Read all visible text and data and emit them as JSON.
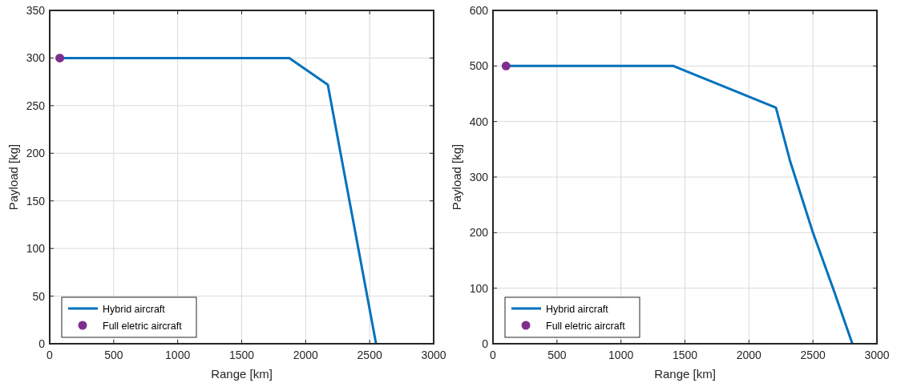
{
  "chart_data": [
    {
      "type": "line",
      "xlabel": "Range [km]",
      "ylabel": "Payload [kg]",
      "xlim": [
        0,
        3000
      ],
      "ylim": [
        0,
        350
      ],
      "xticks": [
        0,
        500,
        1000,
        1500,
        2000,
        2500,
        3000
      ],
      "yticks": [
        0,
        50,
        100,
        150,
        200,
        250,
        300,
        350
      ],
      "grid": true,
      "legend": "bottom left",
      "series": [
        {
          "name": "Hybrid aircraft",
          "color": "#0072bd",
          "x": [
            79,
            1872,
            2173,
            2550
          ],
          "values": [
            300,
            300,
            272,
            0
          ],
          "marker": "none",
          "line_style": "solid"
        },
        {
          "type": "scatter",
          "name": "Full eletric aircraft",
          "color": "#7e2f8e",
          "x": [
            79
          ],
          "values": [
            300
          ],
          "marker": "circle"
        }
      ]
    },
    {
      "type": "line",
      "xlabel": "Range [km]",
      "ylabel": "Payload [kg]",
      "xlim": [
        0,
        3000
      ],
      "ylim": [
        0,
        600
      ],
      "xticks": [
        0,
        500,
        1000,
        1500,
        2000,
        2500,
        3000
      ],
      "yticks": [
        0,
        100,
        200,
        300,
        400,
        500,
        600
      ],
      "grid": true,
      "legend": "bottom left",
      "series": [
        {
          "name": "Hybrid aircraft",
          "color": "#0072bd",
          "x": [
            102,
            1410,
            2211,
            2320,
            2500,
            2657,
            2808
          ],
          "values": [
            500,
            500,
            425,
            330,
            200,
            100,
            0
          ],
          "marker": "none",
          "line_style": "solid"
        },
        {
          "type": "scatter",
          "name": "Full eletric aircraft",
          "color": "#7e2f8e",
          "x": [
            102
          ],
          "values": [
            500
          ],
          "marker": "circle"
        }
      ]
    }
  ]
}
